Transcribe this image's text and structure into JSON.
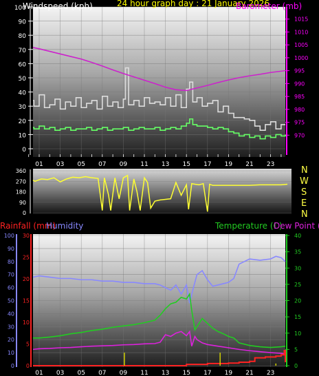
{
  "header": {
    "title": "24 hour graph day : 21 January 2026",
    "wind_label": "Windspeed (kph)",
    "baro_label": "Barometer (mb)",
    "title_color": "#ffff00",
    "wind_color": "#ffffff",
    "baro_color": "#ff00ff"
  },
  "compass": [
    "N",
    "W",
    "S",
    "E",
    "N"
  ],
  "bottom_labels": {
    "rainfall": "Rainfall (mm)",
    "humidity": "Humidity",
    "temperature": "Temperature (C)",
    "dewpoint": "Dew Point (C)"
  },
  "colors": {
    "gust": "#dddddd",
    "avg_wind": "#66ff66",
    "barometer": "#cc22cc",
    "direction": "#ffff33",
    "humidity": "#8888ff",
    "temperature": "#22cc22",
    "dewpoint": "#dd22dd",
    "rainfall": "#ff2222",
    "rain_rate": "#dddd00"
  },
  "chart_data": [
    {
      "type": "line",
      "title": "24 hour graph day : 21 January 2026",
      "x_ticks": [
        "01",
        "03",
        "05",
        "07",
        "09",
        "11",
        "13",
        "15",
        "17",
        "19",
        "21",
        "23"
      ],
      "xlim": [
        0,
        24.6
      ],
      "y_left": {
        "label": "Windspeed (kph)",
        "ylim": [
          0,
          100
        ],
        "ticks": [
          "0",
          "10",
          "20",
          "30",
          "40",
          "50",
          "60",
          "70",
          "80",
          "90",
          "100"
        ]
      },
      "y_right": {
        "label": "Barometer (mb)",
        "ylim": [
          965,
          1020
        ],
        "ticks": [
          "970",
          "975",
          "980",
          "985",
          "990",
          "995",
          "1000",
          "1005",
          "1010",
          "1015"
        ]
      },
      "series": [
        {
          "axis": "left",
          "step": true,
          "x": [
            0.0,
            0.5,
            1.0,
            1.5,
            2.0,
            2.5,
            3.0,
            3.5,
            4.0,
            4.5,
            5.0,
            5.5,
            6.0,
            6.5,
            7.0,
            7.5,
            8.0,
            8.5,
            9.0,
            9.2,
            9.5,
            10.0,
            10.5,
            11.0,
            11.5,
            12.0,
            12.5,
            13.0,
            13.5,
            14.0,
            14.5,
            15.0,
            15.3,
            15.6,
            16.0,
            16.5,
            17.0,
            17.5,
            18.0,
            18.5,
            19.0,
            19.5,
            20.0,
            20.5,
            21.0,
            21.5,
            22.0,
            22.5,
            23.0,
            23.5,
            24.0,
            24.6
          ],
          "values": [
            34,
            30,
            38,
            29,
            31,
            35,
            28,
            33,
            30,
            36,
            29,
            32,
            34,
            28,
            37,
            30,
            33,
            29,
            35,
            57,
            31,
            34,
            30,
            36,
            32,
            33,
            31,
            36,
            30,
            38,
            29,
            42,
            47,
            33,
            36,
            30,
            32,
            34,
            26,
            30,
            25,
            22,
            22,
            21,
            20,
            16,
            13,
            17,
            19,
            14,
            17,
            17
          ]
        },
        {
          "axis": "left",
          "step": true,
          "x": [
            0.0,
            0.5,
            1.0,
            1.5,
            2.0,
            2.5,
            3.0,
            3.5,
            4.0,
            4.5,
            5.0,
            5.5,
            6.0,
            6.5,
            7.0,
            7.5,
            8.0,
            8.5,
            9.0,
            9.5,
            10.0,
            10.5,
            11.0,
            11.5,
            12.0,
            12.5,
            13.0,
            13.5,
            14.0,
            14.5,
            15.0,
            15.3,
            15.6,
            16.0,
            16.5,
            17.0,
            17.5,
            18.0,
            18.5,
            19.0,
            19.5,
            20.0,
            20.5,
            21.0,
            21.5,
            22.0,
            22.5,
            23.0,
            23.5,
            24.0,
            24.6
          ],
          "values": [
            15,
            14,
            16,
            14,
            15,
            13,
            14,
            15,
            13,
            14,
            14,
            15,
            13,
            14,
            15,
            13,
            14,
            14,
            15,
            13,
            14,
            15,
            14,
            14,
            15,
            13,
            14,
            15,
            14,
            16,
            18,
            21,
            17,
            16,
            16,
            15,
            14,
            15,
            14,
            12,
            11,
            9,
            10,
            8,
            9,
            7,
            9,
            8,
            10,
            9,
            10
          ]
        },
        {
          "axis": "right",
          "x": [
            0,
            1,
            2,
            3,
            4,
            5,
            6,
            7,
            8,
            9,
            10,
            11,
            12,
            13,
            14,
            15,
            16,
            17,
            18,
            19,
            20,
            21,
            22,
            23,
            24,
            24.6
          ],
          "values": [
            1004,
            1003.5,
            1002.5,
            1001.5,
            1000.5,
            999.5,
            998.2,
            996.8,
            995.3,
            993.9,
            992.6,
            991.3,
            990.0,
            988.6,
            987.6,
            987.3,
            988.3,
            989.3,
            990.4,
            991.4,
            992.3,
            993.0,
            993.6,
            994.3,
            994.8,
            995.0
          ]
        }
      ]
    },
    {
      "type": "line",
      "ylim": [
        0,
        360
      ],
      "y_ticks": [
        "0",
        "90",
        "180",
        "270",
        "360"
      ],
      "x": [
        0.0,
        0.6,
        1.2,
        1.8,
        2.4,
        3.0,
        3.6,
        4.2,
        4.8,
        5.4,
        6.0,
        6.6,
        7.0,
        7.2,
        7.6,
        7.8,
        8.2,
        8.6,
        9.0,
        9.4,
        9.6,
        10.0,
        10.3,
        10.6,
        11.0,
        11.3,
        11.6,
        12.0,
        12.5,
        13.0,
        13.5,
        14.0,
        14.5,
        15.0,
        15.2,
        15.5,
        15.8,
        16.2,
        16.6,
        17.0,
        17.2,
        17.5,
        18.0,
        19.0,
        20.0,
        21.0,
        22.0,
        23.0,
        24.0,
        24.6
      ],
      "values": [
        280,
        270,
        290,
        285,
        300,
        265,
        290,
        305,
        300,
        310,
        300,
        295,
        20,
        300,
        150,
        20,
        300,
        120,
        300,
        320,
        20,
        290,
        180,
        20,
        300,
        260,
        40,
        100,
        110,
        115,
        120,
        260,
        150,
        240,
        30,
        250,
        245,
        240,
        250,
        10,
        245,
        235,
        235,
        235,
        235,
        235,
        240,
        240,
        240,
        245
      ]
    },
    {
      "type": "line",
      "x_ticks": [
        "01",
        "03",
        "05",
        "07",
        "09",
        "11",
        "13",
        "15",
        "17",
        "19",
        "21",
        "23"
      ],
      "xlim": [
        0,
        24.6
      ],
      "y_rain": {
        "label": "Rainfall (mm)",
        "ylim": [
          0,
          30
        ],
        "ticks": [
          "0",
          "5",
          "10",
          "15",
          "20",
          "25",
          "30"
        ]
      },
      "y_humidity": {
        "label": "Humidity",
        "ylim": [
          0,
          100
        ],
        "ticks": [
          "0",
          "10",
          "20",
          "30",
          "40",
          "50",
          "60",
          "70",
          "80",
          "90",
          "100"
        ]
      },
      "y_temp": {
        "label": "Temperature (C) / Dew Point (C)",
        "ylim": [
          0,
          40
        ],
        "ticks": [
          "0",
          "5",
          "10",
          "15",
          "20",
          "25",
          "30",
          "35",
          "40"
        ]
      },
      "series": [
        {
          "axis": "humidity",
          "x": [
            0,
            1,
            2,
            3,
            4,
            5,
            6,
            7,
            8,
            9,
            10,
            11,
            12,
            12.5,
            13,
            13.5,
            14,
            14.5,
            15,
            15.3,
            15.6,
            16,
            16.5,
            17,
            17.5,
            18,
            18.5,
            19,
            19.5,
            20,
            21,
            22,
            23,
            23.5,
            24,
            24.6
          ],
          "values": [
            68,
            69,
            68,
            67,
            67,
            66,
            66,
            65,
            65,
            64,
            64,
            63,
            63,
            62,
            60,
            58,
            62,
            55,
            62,
            48,
            58,
            70,
            73,
            66,
            61,
            62,
            63,
            64,
            67,
            78,
            82,
            81,
            82,
            84,
            83,
            80
          ]
        },
        {
          "axis": "temp",
          "x": [
            0,
            1,
            2,
            3,
            4,
            5,
            6,
            7,
            8,
            9,
            10,
            11,
            12,
            12.5,
            13,
            13.5,
            14,
            14.5,
            15,
            15.3,
            15.5,
            15.8,
            16,
            16.5,
            17,
            17.5,
            18,
            18.5,
            19,
            19.5,
            20,
            21,
            22,
            23,
            24,
            24.6
          ],
          "values": [
            8.5,
            8.5,
            8.8,
            9.2,
            9.8,
            10.2,
            10.8,
            11.2,
            11.8,
            12.2,
            12.6,
            13.2,
            14,
            15.5,
            17.5,
            19,
            19.5,
            21,
            20.5,
            22,
            17,
            11,
            12,
            14.5,
            13,
            11.5,
            10.5,
            9.8,
            9,
            8.5,
            7,
            6.2,
            5.8,
            5.6,
            5.8,
            6
          ]
        },
        {
          "axis": "temp",
          "x": [
            0,
            1,
            2,
            3,
            4,
            5,
            6,
            7,
            8,
            9,
            10,
            11,
            12,
            12.5,
            13,
            13.5,
            14,
            14.5,
            15,
            15.3,
            15.5,
            15.8,
            16,
            16.5,
            17,
            18,
            19,
            20,
            21,
            22,
            23,
            24,
            24.6
          ],
          "values": [
            5,
            5.2,
            5.3,
            5.5,
            5.6,
            5.8,
            6,
            6.1,
            6.2,
            6.4,
            6.5,
            6.7,
            6.8,
            7.2,
            9.5,
            9,
            10,
            10.5,
            9.2,
            10.5,
            6,
            9,
            8,
            7,
            6.5,
            6,
            5.5,
            5,
            4.6,
            4.3,
            4,
            3.8,
            3.6
          ]
        },
        {
          "axis": "rain",
          "x": [
            0,
            14,
            15,
            16,
            17,
            18,
            19,
            20,
            21,
            21.5,
            22,
            22.5,
            23,
            23.5,
            23.8,
            24,
            24.3,
            24.6
          ],
          "values": [
            0,
            0,
            0.3,
            0.3,
            0.5,
            0.5,
            0.6,
            0.8,
            1,
            1.8,
            1.8,
            2,
            2,
            2.2,
            2.2,
            2.5,
            3.5,
            0.8
          ]
        },
        {
          "axis": "rain",
          "bars": true,
          "x": [
            9.1,
            18.2,
            23.5
          ],
          "values": [
            3,
            3,
            0.5
          ]
        }
      ]
    }
  ]
}
